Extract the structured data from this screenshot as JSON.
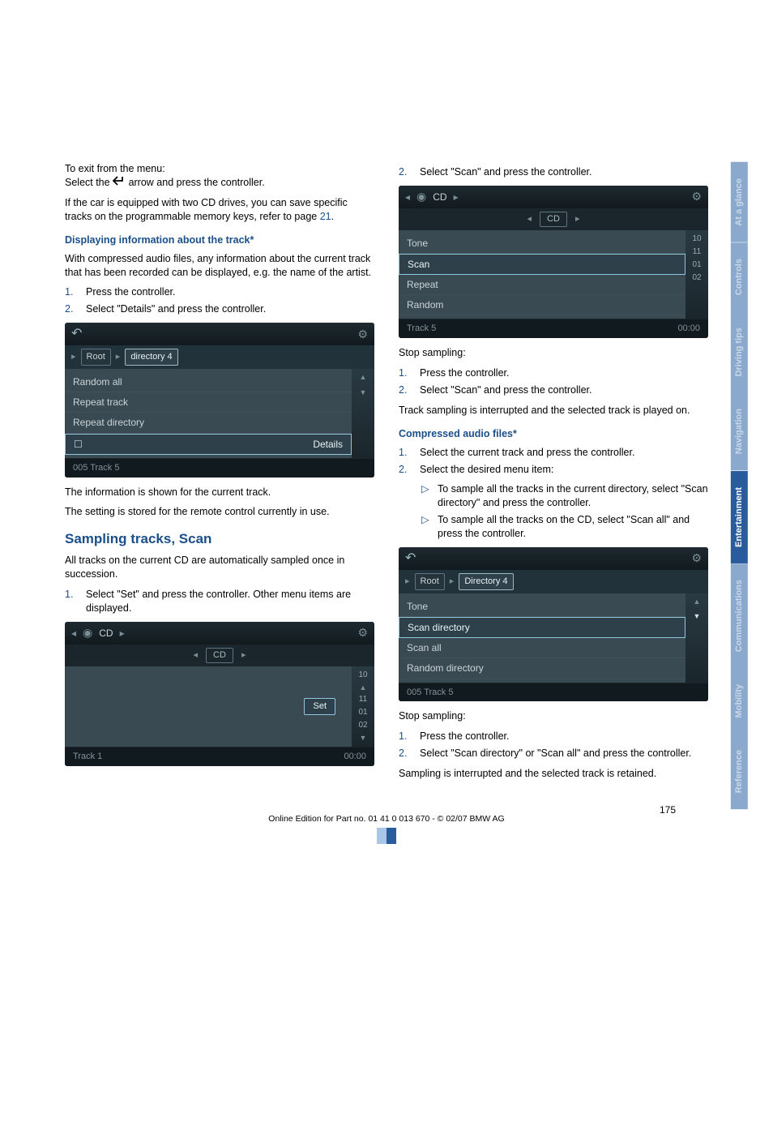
{
  "left": {
    "exit_title": "To exit from the menu:",
    "exit_text_1": "Select the ",
    "exit_text_2": " arrow and press the controller.",
    "two_drives_1": "If the car is equipped with two CD drives, you can save specific tracks on the programmable memory keys, refer to page ",
    "two_drives_ref": "21",
    "two_drives_2": ".",
    "disp_heading": "Displaying information about the track*",
    "disp_body": "With compressed audio files, any information about the current track that has been recorded can be displayed, e.g. the name of the artist.",
    "steps_disp": [
      "Press the controller.",
      "Select \"Details\" and press the controller."
    ],
    "ui1": {
      "crumb1": "Root",
      "crumb2": "directory 4",
      "rows": [
        "Random all",
        "Repeat track",
        "Repeat directory",
        "Details"
      ],
      "footer": "005 Track 5"
    },
    "after_ui1_a": "The information is shown for the current track.",
    "after_ui1_b": "The setting is stored for the remote control currently in use.",
    "sampling_heading": "Sampling tracks, Scan",
    "sampling_body": "All tracks on the current CD are automatically sampled once in succession.",
    "steps_sampling": [
      "Select \"Set\" and press the controller. Other menu items are displayed."
    ],
    "ui2": {
      "top_label": "CD",
      "sub_label": "CD",
      "scale": [
        "10",
        "11",
        "01",
        "02"
      ],
      "set": "Set",
      "footer_left": "Track 1",
      "footer_right": "00:00"
    }
  },
  "right": {
    "step2": "Select \"Scan\" and press the controller.",
    "ui3": {
      "top_label": "CD",
      "sub_label": "CD",
      "rows": [
        {
          "label": "Tone",
          "val": "10"
        },
        {
          "label": "Scan",
          "val": "11"
        },
        {
          "label": "Repeat",
          "val": "01"
        },
        {
          "label": "Random",
          "val": "02"
        }
      ],
      "footer_left": "Track 5",
      "footer_right": "00:00"
    },
    "stop1_label": "Stop sampling:",
    "stop1_steps": [
      "Press the controller.",
      "Select \"Scan\" and press the controller."
    ],
    "stop1_after": "Track sampling is interrupted and the selected track is played on.",
    "comp_heading": "Compressed audio files*",
    "comp_steps": [
      "Select the current track and press the controller.",
      "Select the desired menu item:"
    ],
    "comp_bullets": [
      "To sample all the tracks in the current directory, select \"Scan directory\" and press the controller.",
      "To sample all the tracks on the CD, select \"Scan all\" and press the controller."
    ],
    "ui4": {
      "crumb1": "Root",
      "crumb2": "Directory 4",
      "rows": [
        "Tone",
        "Scan directory",
        "Scan all",
        "Random directory"
      ],
      "footer": "005 Track 5"
    },
    "stop2_label": "Stop sampling:",
    "stop2_steps": [
      "Press the controller.",
      "Select \"Scan directory\" or \"Scan all\" and press the controller."
    ],
    "stop2_after": "Sampling is interrupted and the selected track is retained."
  },
  "tabs": [
    {
      "label": "At a glance",
      "color": "#8aa9cd",
      "active": false
    },
    {
      "label": "Controls",
      "color": "#8aa9cd",
      "active": false
    },
    {
      "label": "Driving tips",
      "color": "#8aa9cd",
      "active": false
    },
    {
      "label": "Navigation",
      "color": "#8aa9cd",
      "active": false
    },
    {
      "label": "Entertainment",
      "color": "#2a5b9c",
      "active": true
    },
    {
      "label": "Communications",
      "color": "#8aa9cd",
      "active": false
    },
    {
      "label": "Mobility",
      "color": "#8aa9cd",
      "active": false
    },
    {
      "label": "Reference",
      "color": "#8aa9cd",
      "active": false
    }
  ],
  "page_number": "175",
  "footer_line": "Online Edition for Part no. 01 41 0 013 670 - © 02/07 BMW AG"
}
